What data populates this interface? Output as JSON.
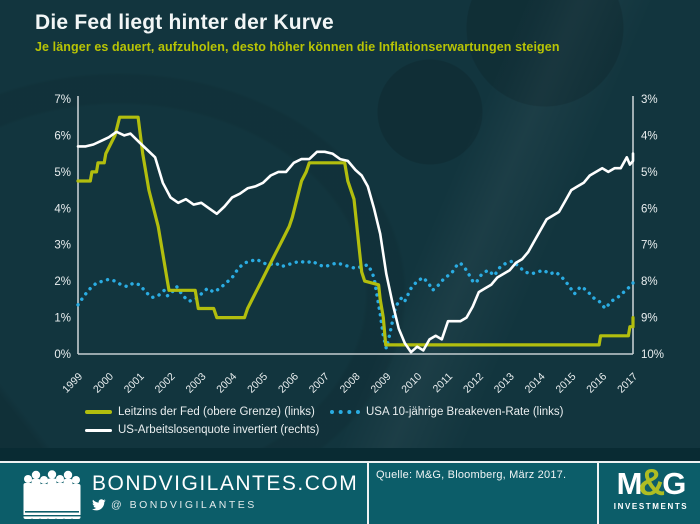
{
  "header": {
    "title": "Die Fed liegt hinter der Kurve",
    "subtitle": "Je länger es dauert, aufzuholen, desto höher können die Inflationserwartungen steigen"
  },
  "legend": {
    "items": [
      {
        "label": "Leitzins der Fed (obere Grenze) (links)",
        "color": "#b2be0e",
        "style": "solid"
      },
      {
        "label": "USA 10-jährige Breakeven-Rate (links)",
        "color": "#2aace2",
        "style": "dotted"
      },
      {
        "label": "US-Arbeitslosenquote invertiert (rechts)",
        "color": "#ffffff",
        "style": "solid"
      }
    ]
  },
  "footer": {
    "site": "BONDVIGILANTES.COM",
    "twitter_handle": "@ BONDVIGILANTES",
    "source": "Quelle: M&G, Bloomberg, März 2017.",
    "logo": {
      "m": "M",
      "amp": "&",
      "g": "G",
      "sub": "INVESTMENTS"
    }
  },
  "colors": {
    "background": "#12353e",
    "footer_teal": "#0c5d69",
    "footer_dark_strip": "#092b33",
    "lime": "#b2be0e",
    "subtitle_lime": "#b8c405",
    "breakeven_blue": "#2aace2",
    "white": "#ffffff",
    "axis_line": "#c4cdd0",
    "axis_text": "#e9eeef"
  },
  "chart_data": {
    "type": "line",
    "title": "Die Fed liegt hinter der Kurve",
    "x_range": [
      1999,
      2017
    ],
    "x_tick_labels": [
      "1999",
      "2000",
      "2001",
      "2002",
      "2003",
      "2004",
      "2005",
      "2006",
      "2007",
      "2008",
      "2009",
      "2010",
      "2011",
      "2012",
      "2013",
      "2014",
      "2015",
      "2016",
      "2017"
    ],
    "left_axis": {
      "min": 0,
      "max": 7,
      "tick_labels_top_to_bottom": [
        "7%",
        "6%",
        "5%",
        "4%",
        "3%",
        "2%",
        "1%",
        "0%"
      ]
    },
    "right_axis": {
      "min": 3,
      "max": 10,
      "inverted": true,
      "tick_labels_top_to_bottom": [
        "3%",
        "4%",
        "5%",
        "6%",
        "7%",
        "8%",
        "9%",
        "10%"
      ]
    },
    "grid": false,
    "legend_position": "bottom",
    "series": [
      {
        "name": "USA 10-jährige Breakeven-Rate (links)",
        "axis": "left",
        "color": "#2aace2",
        "style": "dotted",
        "width": 3.4,
        "points": [
          [
            1999.0,
            1.35
          ],
          [
            1999.2,
            1.6
          ],
          [
            1999.4,
            1.8
          ],
          [
            1999.6,
            1.95
          ],
          [
            1999.8,
            2.0
          ],
          [
            2000.0,
            2.05
          ],
          [
            2000.2,
            2.0
          ],
          [
            2000.4,
            1.9
          ],
          [
            2000.6,
            1.85
          ],
          [
            2000.8,
            1.95
          ],
          [
            2001.0,
            1.9
          ],
          [
            2001.2,
            1.7
          ],
          [
            2001.4,
            1.55
          ],
          [
            2001.6,
            1.6
          ],
          [
            2001.8,
            1.75
          ],
          [
            2001.9,
            1.6
          ],
          [
            2002.0,
            1.65
          ],
          [
            2002.2,
            1.85
          ],
          [
            2002.4,
            1.6
          ],
          [
            2002.6,
            1.45
          ],
          [
            2002.8,
            1.5
          ],
          [
            2003.0,
            1.65
          ],
          [
            2003.2,
            1.8
          ],
          [
            2003.4,
            1.7
          ],
          [
            2003.6,
            1.8
          ],
          [
            2003.8,
            1.95
          ],
          [
            2004.0,
            2.1
          ],
          [
            2004.2,
            2.35
          ],
          [
            2004.4,
            2.5
          ],
          [
            2004.6,
            2.55
          ],
          [
            2004.8,
            2.6
          ],
          [
            2005.0,
            2.5
          ],
          [
            2005.2,
            2.45
          ],
          [
            2005.4,
            2.5
          ],
          [
            2005.6,
            2.4
          ],
          [
            2005.8,
            2.45
          ],
          [
            2006.0,
            2.5
          ],
          [
            2006.2,
            2.55
          ],
          [
            2006.4,
            2.5
          ],
          [
            2006.6,
            2.55
          ],
          [
            2006.8,
            2.45
          ],
          [
            2007.0,
            2.4
          ],
          [
            2007.2,
            2.45
          ],
          [
            2007.4,
            2.5
          ],
          [
            2007.6,
            2.45
          ],
          [
            2007.8,
            2.4
          ],
          [
            2008.0,
            2.35
          ],
          [
            2008.2,
            2.4
          ],
          [
            2008.4,
            2.45
          ],
          [
            2008.5,
            2.3
          ],
          [
            2008.6,
            2.1
          ],
          [
            2008.7,
            1.6
          ],
          [
            2008.8,
            1.1
          ],
          [
            2008.9,
            0.5
          ],
          [
            2009.0,
            0.15
          ],
          [
            2009.1,
            0.5
          ],
          [
            2009.2,
            0.9
          ],
          [
            2009.3,
            1.3
          ],
          [
            2009.5,
            1.55
          ],
          [
            2009.6,
            1.45
          ],
          [
            2009.8,
            1.8
          ],
          [
            2010.0,
            2.0
          ],
          [
            2010.2,
            2.1
          ],
          [
            2010.4,
            1.9
          ],
          [
            2010.5,
            1.75
          ],
          [
            2010.7,
            1.9
          ],
          [
            2010.9,
            2.1
          ],
          [
            2011.1,
            2.2
          ],
          [
            2011.3,
            2.45
          ],
          [
            2011.4,
            2.5
          ],
          [
            2011.6,
            2.3
          ],
          [
            2011.8,
            2.0
          ],
          [
            2011.9,
            1.95
          ],
          [
            2012.1,
            2.2
          ],
          [
            2012.3,
            2.3
          ],
          [
            2012.5,
            2.15
          ],
          [
            2012.7,
            2.4
          ],
          [
            2012.9,
            2.5
          ],
          [
            2013.1,
            2.55
          ],
          [
            2013.3,
            2.4
          ],
          [
            2013.5,
            2.25
          ],
          [
            2013.7,
            2.2
          ],
          [
            2013.9,
            2.25
          ],
          [
            2014.1,
            2.3
          ],
          [
            2014.3,
            2.2
          ],
          [
            2014.5,
            2.25
          ],
          [
            2014.7,
            2.1
          ],
          [
            2014.9,
            1.9
          ],
          [
            2015.1,
            1.65
          ],
          [
            2015.3,
            1.85
          ],
          [
            2015.5,
            1.75
          ],
          [
            2015.7,
            1.55
          ],
          [
            2015.9,
            1.45
          ],
          [
            2016.1,
            1.25
          ],
          [
            2016.3,
            1.45
          ],
          [
            2016.5,
            1.55
          ],
          [
            2016.7,
            1.7
          ],
          [
            2016.9,
            1.85
          ],
          [
            2017.0,
            1.95
          ],
          [
            2017.1,
            2.0
          ]
        ]
      },
      {
        "name": "Leitzins der Fed (obere Grenze) (links)",
        "axis": "left",
        "color": "#b2be0e",
        "style": "solid",
        "width": 3.2,
        "points": [
          [
            1999.0,
            4.75
          ],
          [
            1999.4,
            4.75
          ],
          [
            1999.45,
            5.0
          ],
          [
            1999.6,
            5.0
          ],
          [
            1999.65,
            5.25
          ],
          [
            1999.85,
            5.25
          ],
          [
            1999.9,
            5.5
          ],
          [
            2000.05,
            5.75
          ],
          [
            2000.2,
            6.0
          ],
          [
            2000.35,
            6.5
          ],
          [
            2000.95,
            6.5
          ],
          [
            2001.1,
            5.5
          ],
          [
            2001.3,
            4.5
          ],
          [
            2001.6,
            3.5
          ],
          [
            2001.9,
            2.0
          ],
          [
            2001.95,
            1.75
          ],
          [
            2002.8,
            1.75
          ],
          [
            2002.9,
            1.25
          ],
          [
            2003.4,
            1.25
          ],
          [
            2003.5,
            1.0
          ],
          [
            2004.4,
            1.0
          ],
          [
            2004.5,
            1.25
          ],
          [
            2004.65,
            1.5
          ],
          [
            2004.8,
            1.75
          ],
          [
            2004.95,
            2.0
          ],
          [
            2005.1,
            2.25
          ],
          [
            2005.25,
            2.5
          ],
          [
            2005.4,
            2.75
          ],
          [
            2005.55,
            3.0
          ],
          [
            2005.7,
            3.25
          ],
          [
            2005.85,
            3.5
          ],
          [
            2005.95,
            3.75
          ],
          [
            2006.1,
            4.25
          ],
          [
            2006.25,
            4.75
          ],
          [
            2006.4,
            5.0
          ],
          [
            2006.5,
            5.25
          ],
          [
            2007.65,
            5.25
          ],
          [
            2007.75,
            4.75
          ],
          [
            2007.95,
            4.25
          ],
          [
            2008.2,
            2.25
          ],
          [
            2008.3,
            2.0
          ],
          [
            2008.75,
            1.9
          ],
          [
            2008.8,
            1.5
          ],
          [
            2008.9,
            1.0
          ],
          [
            2008.98,
            0.25
          ],
          [
            2015.9,
            0.25
          ],
          [
            2015.95,
            0.5
          ],
          [
            2016.85,
            0.5
          ],
          [
            2016.9,
            0.75
          ],
          [
            2017.05,
            0.75
          ],
          [
            2017.15,
            1.0
          ]
        ]
      },
      {
        "name": "US-Arbeitslosenquote invertiert (rechts)",
        "axis": "right",
        "color": "#ffffff",
        "style": "solid",
        "width": 2.6,
        "points": [
          [
            1999.0,
            4.3
          ],
          [
            1999.25,
            4.3
          ],
          [
            1999.5,
            4.25
          ],
          [
            1999.75,
            4.15
          ],
          [
            2000.0,
            4.05
          ],
          [
            2000.25,
            3.9
          ],
          [
            2000.5,
            4.0
          ],
          [
            2000.7,
            3.95
          ],
          [
            2001.0,
            4.2
          ],
          [
            2001.25,
            4.4
          ],
          [
            2001.5,
            4.6
          ],
          [
            2001.75,
            5.3
          ],
          [
            2002.0,
            5.7
          ],
          [
            2002.25,
            5.85
          ],
          [
            2002.5,
            5.75
          ],
          [
            2002.75,
            5.9
          ],
          [
            2003.0,
            5.85
          ],
          [
            2003.25,
            6.0
          ],
          [
            2003.5,
            6.15
          ],
          [
            2003.75,
            5.95
          ],
          [
            2004.0,
            5.7
          ],
          [
            2004.25,
            5.6
          ],
          [
            2004.5,
            5.45
          ],
          [
            2004.75,
            5.4
          ],
          [
            2005.0,
            5.3
          ],
          [
            2005.25,
            5.1
          ],
          [
            2005.5,
            5.0
          ],
          [
            2005.75,
            5.0
          ],
          [
            2006.0,
            4.75
          ],
          [
            2006.25,
            4.65
          ],
          [
            2006.5,
            4.65
          ],
          [
            2006.75,
            4.45
          ],
          [
            2007.0,
            4.45
          ],
          [
            2007.25,
            4.5
          ],
          [
            2007.5,
            4.65
          ],
          [
            2007.75,
            4.7
          ],
          [
            2008.0,
            4.95
          ],
          [
            2008.2,
            5.1
          ],
          [
            2008.4,
            5.4
          ],
          [
            2008.6,
            6.0
          ],
          [
            2008.8,
            6.7
          ],
          [
            2009.0,
            7.8
          ],
          [
            2009.2,
            8.6
          ],
          [
            2009.4,
            9.3
          ],
          [
            2009.6,
            9.7
          ],
          [
            2009.8,
            9.95
          ],
          [
            2010.0,
            9.8
          ],
          [
            2010.2,
            9.9
          ],
          [
            2010.4,
            9.6
          ],
          [
            2010.6,
            9.5
          ],
          [
            2010.8,
            9.6
          ],
          [
            2011.0,
            9.1
          ],
          [
            2011.2,
            9.1
          ],
          [
            2011.4,
            9.1
          ],
          [
            2011.6,
            9.0
          ],
          [
            2011.8,
            8.7
          ],
          [
            2012.0,
            8.3
          ],
          [
            2012.2,
            8.2
          ],
          [
            2012.4,
            8.1
          ],
          [
            2012.6,
            7.9
          ],
          [
            2012.8,
            7.8
          ],
          [
            2013.0,
            7.7
          ],
          [
            2013.2,
            7.5
          ],
          [
            2013.4,
            7.4
          ],
          [
            2013.6,
            7.2
          ],
          [
            2013.8,
            6.9
          ],
          [
            2014.0,
            6.6
          ],
          [
            2014.2,
            6.3
          ],
          [
            2014.4,
            6.2
          ],
          [
            2014.6,
            6.1
          ],
          [
            2014.8,
            5.8
          ],
          [
            2015.0,
            5.5
          ],
          [
            2015.2,
            5.4
          ],
          [
            2015.4,
            5.3
          ],
          [
            2015.6,
            5.1
          ],
          [
            2015.8,
            5.0
          ],
          [
            2016.0,
            4.9
          ],
          [
            2016.2,
            5.0
          ],
          [
            2016.4,
            4.9
          ],
          [
            2016.6,
            4.9
          ],
          [
            2016.8,
            4.6
          ],
          [
            2016.9,
            4.8
          ],
          [
            2017.0,
            4.7
          ],
          [
            2017.1,
            4.5
          ]
        ]
      }
    ]
  }
}
